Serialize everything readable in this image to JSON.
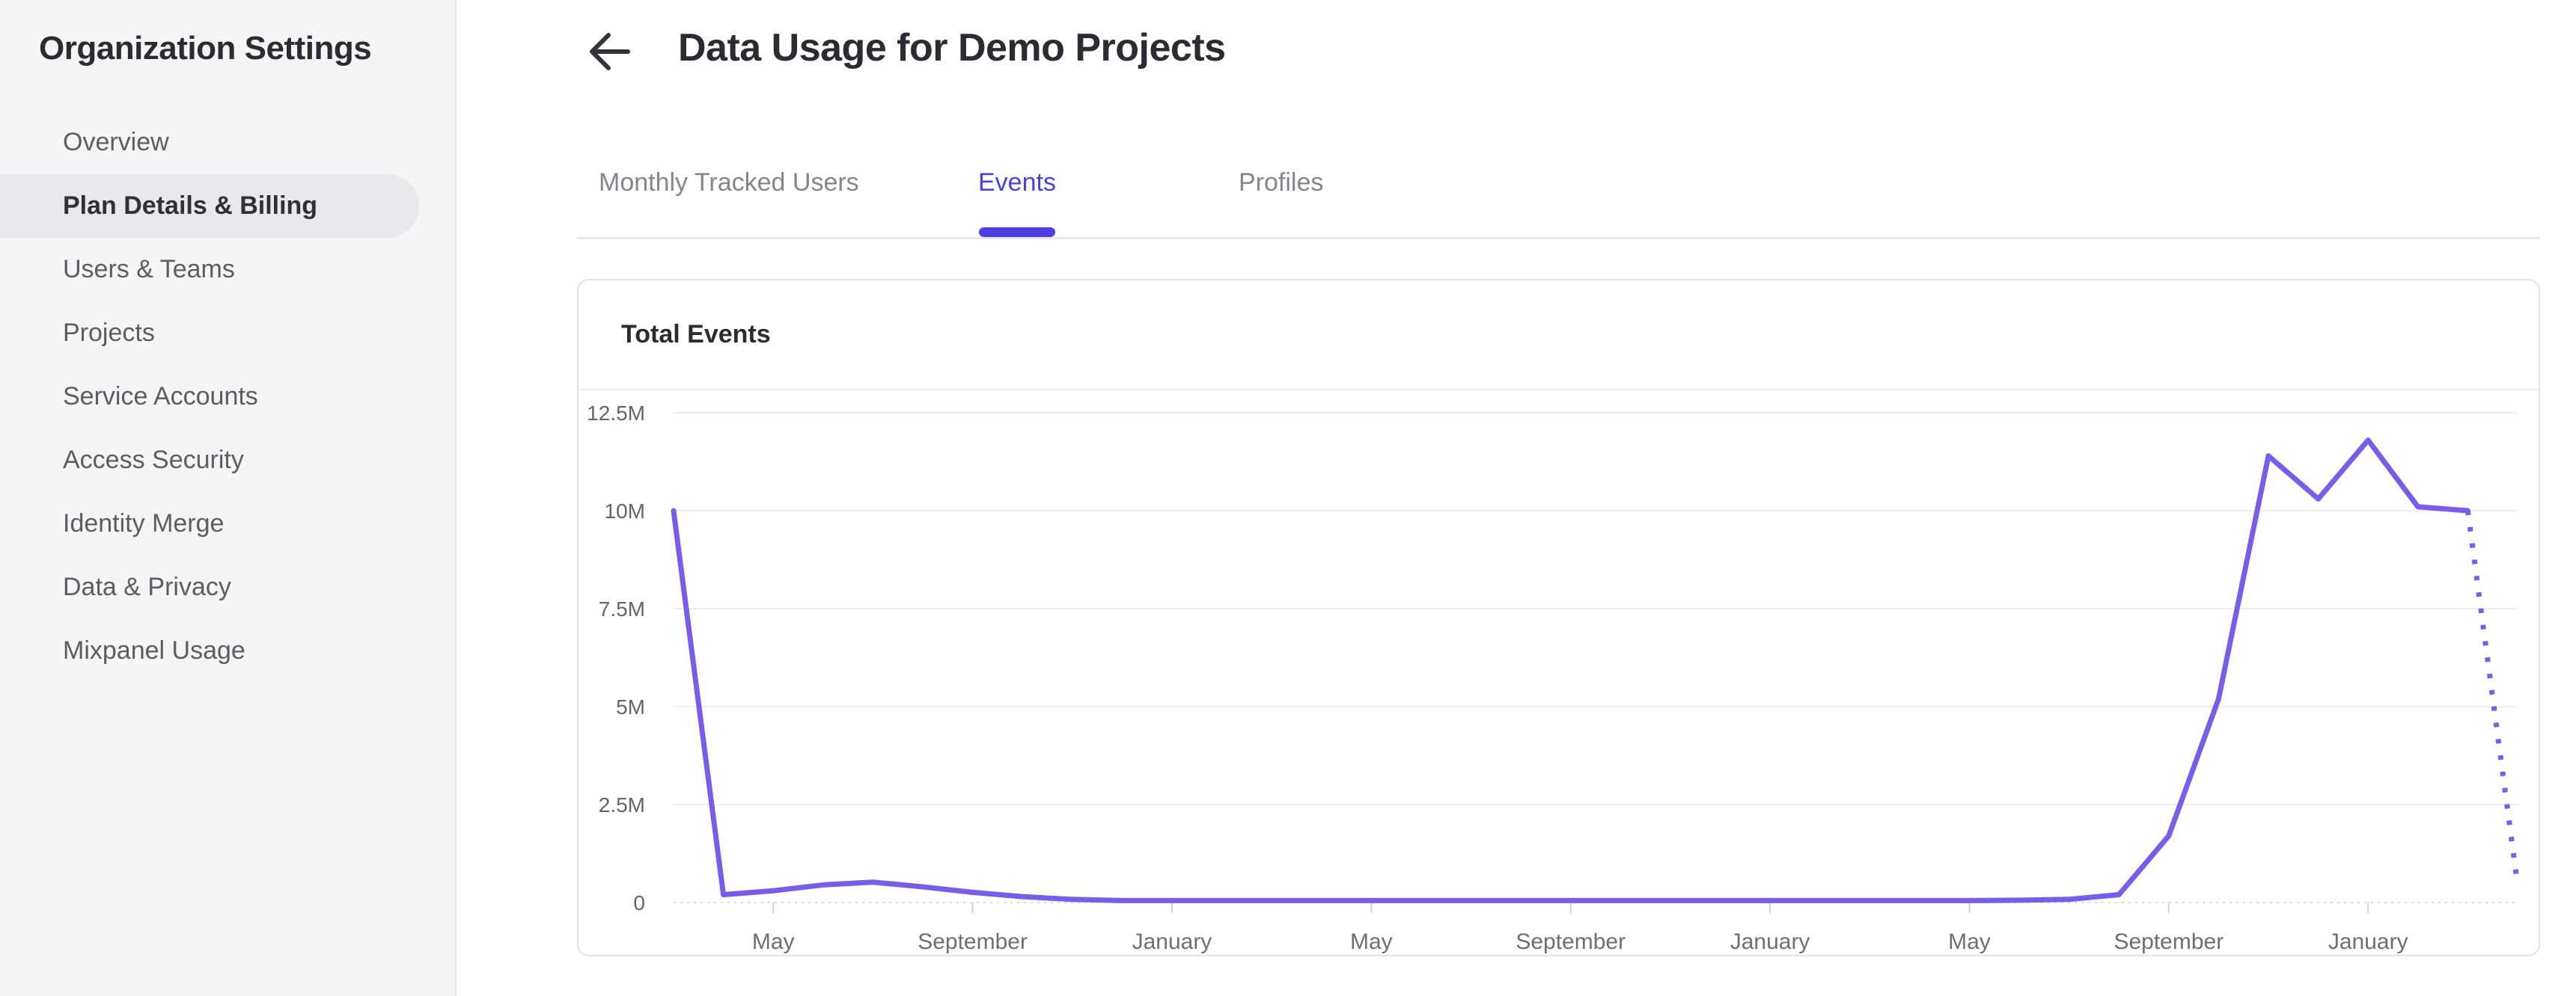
{
  "sidebar": {
    "title": "Organization Settings",
    "items": [
      {
        "label": "Overview",
        "active": false
      },
      {
        "label": "Plan Details & Billing",
        "active": true
      },
      {
        "label": "Users & Teams",
        "active": false
      },
      {
        "label": "Projects",
        "active": false
      },
      {
        "label": "Service Accounts",
        "active": false
      },
      {
        "label": "Access Security",
        "active": false
      },
      {
        "label": "Identity Merge",
        "active": false
      },
      {
        "label": "Data & Privacy",
        "active": false
      },
      {
        "label": "Mixpanel Usage",
        "active": false
      }
    ]
  },
  "header": {
    "title": "Data Usage for Demo Projects",
    "back_icon": "left-arrow-icon"
  },
  "tabs": [
    {
      "label": "Monthly Tracked Users",
      "active": false
    },
    {
      "label": "Events",
      "active": true
    },
    {
      "label": "Profiles",
      "active": false
    }
  ],
  "colors": {
    "accent": "#4b3fe2",
    "chart_line": "#7a5cea",
    "sidebar_active_bg": "#e9e9eb"
  },
  "chart_data": {
    "type": "line",
    "title": "Total Events",
    "xlabel": "",
    "ylabel": "",
    "x_unit": "month",
    "series": [
      {
        "name": "Total Events",
        "values_millions": [
          10,
          0.2,
          0.3,
          0.45,
          0.52,
          0.4,
          0.26,
          0.15,
          0.08,
          0.05,
          0.05,
          0.05,
          0.05,
          0.05,
          0.05,
          0.05,
          0.05,
          0.05,
          0.05,
          0.05,
          0.05,
          0.05,
          0.05,
          0.05,
          0.05,
          0.05,
          0.05,
          0.06,
          0.08,
          0.2,
          1.7,
          5.2,
          11.4,
          10.3,
          11.8,
          10.1,
          10.0,
          0.45
        ]
      }
    ],
    "last_segment_dotted": true,
    "x_tick_labels": [
      "May",
      "September",
      "January",
      "May",
      "September",
      "January",
      "May",
      "September",
      "January"
    ],
    "x_tick_month_indices": [
      2,
      6,
      10,
      14,
      18,
      22,
      26,
      30,
      34
    ],
    "y_tick_labels": [
      "12.5M",
      "10M",
      "7.5M",
      "5M",
      "2.5M",
      "0"
    ],
    "y_tick_values_millions": [
      12.5,
      10,
      7.5,
      5,
      2.5,
      0
    ],
    "ylim_millions": [
      0,
      12.5
    ],
    "grid": "horizontal-only",
    "legend": "none",
    "line_color": "#7a5cea"
  }
}
